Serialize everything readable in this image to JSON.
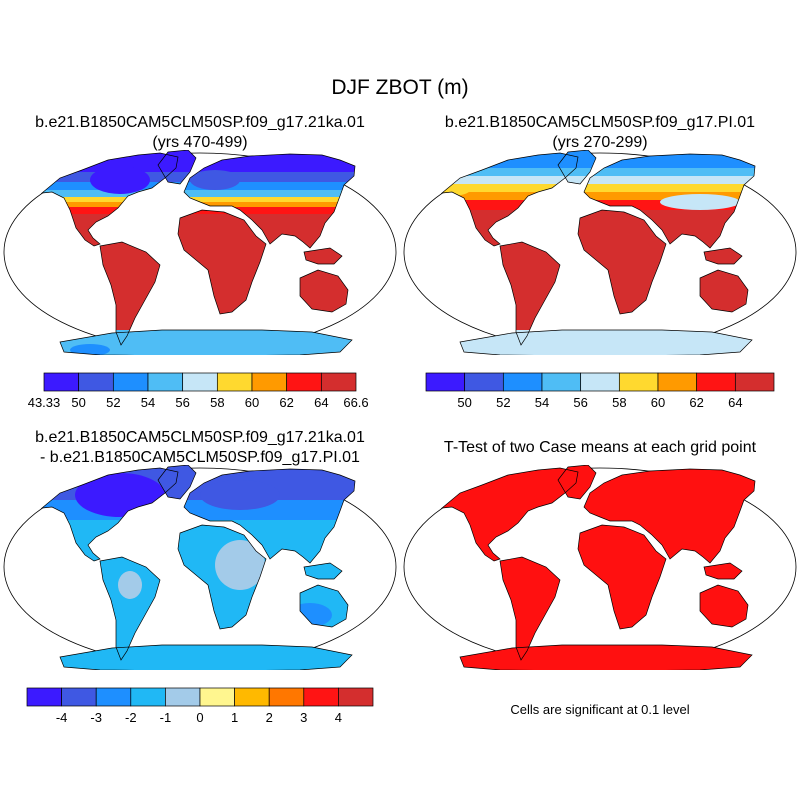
{
  "main_title": "DJF ZBOT (m)",
  "colors": {
    "land_abs": [
      "#3c1aff",
      "#3f58e3",
      "#1e8fff",
      "#4fbdf5",
      "#c6e6f7",
      "#ffd92f",
      "#ff9a00",
      "#ff1414",
      "#d42e2e"
    ],
    "land_diff": [
      "#3c1aff",
      "#3f58e3",
      "#1e8fff",
      "#20b8f5",
      "#a3cbe9",
      "#fff68f",
      "#ffb900",
      "#ff7700",
      "#ff1414",
      "#d42e2e"
    ],
    "ttest": "#ff1010",
    "outline": "#000000"
  },
  "panels": {
    "p1": {
      "title_line1": "b.e21.B1850CAM5CLM50SP.f09_g17.21ka.01",
      "title_line2": "(yrs 470-499)"
    },
    "p2": {
      "title_line1": "b.e21.B1850CAM5CLM50SP.f09_g17.PI.01",
      "title_line2": "(yrs 270-299)"
    },
    "p3": {
      "title_line1": "b.e21.B1850CAM5CLM50SP.f09_g17.21ka.01",
      "title_line2": "- b.e21.B1850CAM5CLM50SP.f09_g17.PI.01"
    },
    "p4": {
      "title_line1": "T-Test of two Case means at each grid point",
      "note": "Cells are significant at 0.1 level"
    }
  },
  "chart_data": [
    {
      "type": "heatmap",
      "title": "b.e21.B1850CAM5CLM50SP.f09_g17.21ka.01 (yrs 470-499)",
      "variable": "ZBOT",
      "units": "m",
      "projection": "Robinson world map",
      "colorbar_levels": [
        "43.33",
        "50",
        "52",
        "54",
        "56",
        "58",
        "60",
        "62",
        "64",
        "66.6"
      ],
      "colorbar_bins": 9
    },
    {
      "type": "heatmap",
      "title": "b.e21.B1850CAM5CLM50SP.f09_g17.PI.01 (yrs 270-299)",
      "variable": "ZBOT",
      "units": "m",
      "projection": "Robinson world map",
      "colorbar_levels": [
        "50",
        "52",
        "54",
        "56",
        "58",
        "60",
        "62",
        "64"
      ],
      "colorbar_bins": 9
    },
    {
      "type": "heatmap",
      "title": "b.e21.B1850CAM5CLM50SP.f09_g17.21ka.01 - b.e21.B1850CAM5CLM50SP.f09_g17.PI.01",
      "projection": "Robinson world map",
      "colorbar_levels": [
        "-4",
        "-3",
        "-2",
        "-1",
        "0",
        "1",
        "2",
        "3",
        "4"
      ],
      "colorbar_bins": 10
    },
    {
      "type": "heatmap",
      "title": "T-Test of two Case means at each grid point",
      "projection": "Robinson world map",
      "note": "Cells are significant at 0.1 level",
      "significance_level": 0.1
    }
  ]
}
